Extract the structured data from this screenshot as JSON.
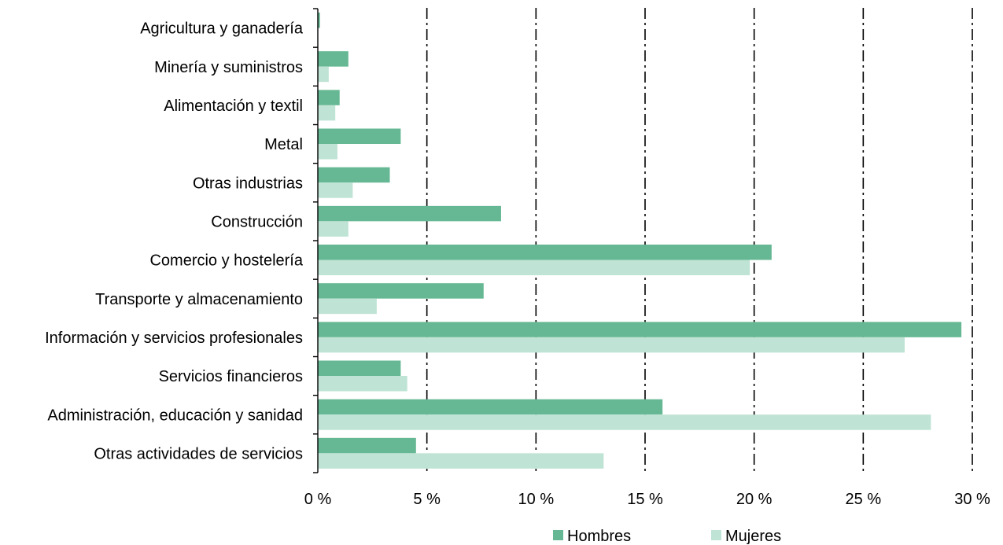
{
  "chart_data": {
    "type": "bar",
    "orientation": "horizontal",
    "categories": [
      "Agricultura y ganadería",
      "Minería y suministros",
      "Alimentación y textil",
      "Metal",
      "Otras industrias",
      "Construcción",
      "Comercio y hostelería",
      "Transporte y almacenamiento",
      "Información y servicios profesionales",
      "Servicios financieros",
      "Administración, educación y sanidad",
      "Otras actividades de servicios"
    ],
    "series": [
      {
        "name": "Hombres",
        "color": "#66b894",
        "values": [
          0.1,
          1.4,
          1.0,
          3.8,
          3.3,
          8.4,
          20.8,
          7.6,
          29.5,
          3.8,
          15.8,
          4.5
        ]
      },
      {
        "name": "Mujeres",
        "color": "#bfe3d5",
        "values": [
          0.0,
          0.5,
          0.8,
          0.9,
          1.6,
          1.4,
          19.8,
          2.7,
          26.9,
          4.1,
          28.1,
          13.1
        ]
      }
    ],
    "xlim": [
      0,
      30
    ],
    "x_ticks": [
      0,
      5,
      10,
      15,
      20,
      25,
      30
    ],
    "x_tick_labels": [
      "0 %",
      "5 %",
      "10 %",
      "15 %",
      "20 %",
      "25 %",
      "30 %"
    ],
    "grid": "vertical dash-dot",
    "legend": "bottom-center",
    "title": "",
    "xlabel": "",
    "ylabel": ""
  }
}
